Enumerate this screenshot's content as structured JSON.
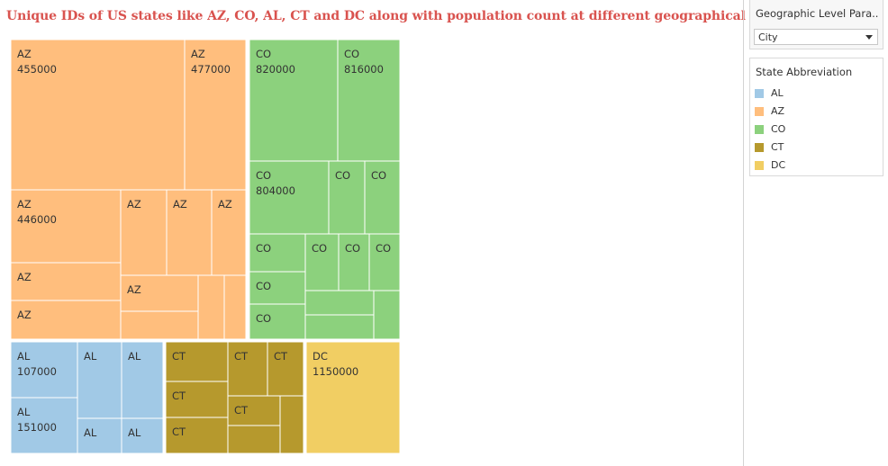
{
  "title": "Unique IDs of US states like AZ, CO, AL, CT and DC along with population count at different geographical level",
  "parameter": {
    "title": "Geographic Level Para...",
    "selected": "City"
  },
  "legend": {
    "title": "State Abbreviation",
    "items": [
      {
        "label": "AL",
        "color": "#a1c9e6"
      },
      {
        "label": "AZ",
        "color": "#ffbe7d"
      },
      {
        "label": "CO",
        "color": "#8cd17d"
      },
      {
        "label": "CT",
        "color": "#b6992d"
      },
      {
        "label": "DC",
        "color": "#f1ce63"
      }
    ]
  },
  "chart_data": {
    "type": "treemap",
    "colors": {
      "AL": "#a1c9e6",
      "AZ": "#ffbe7d",
      "CO": "#8cd17d",
      "CT": "#b6992d",
      "DC": "#f1ce63"
    },
    "labels": [
      {
        "state": "AZ",
        "value": "455000"
      },
      {
        "state": "AZ",
        "value": "477000"
      },
      {
        "state": "AZ",
        "value": "446000"
      },
      {
        "state": "AZ"
      },
      {
        "state": "AZ"
      },
      {
        "state": "AZ"
      },
      {
        "state": "AZ"
      },
      {
        "state": "AZ"
      },
      {
        "state": "AZ"
      },
      {
        "state": "CO",
        "value": "820000"
      },
      {
        "state": "CO",
        "value": "816000"
      },
      {
        "state": "CO",
        "value": "804000"
      },
      {
        "state": "CO"
      },
      {
        "state": "CO"
      },
      {
        "state": "CO"
      },
      {
        "state": "CO"
      },
      {
        "state": "CO"
      },
      {
        "state": "CO"
      },
      {
        "state": "CO"
      },
      {
        "state": "CO"
      },
      {
        "state": "AL",
        "value": "107000"
      },
      {
        "state": "AL",
        "value": "151000"
      },
      {
        "state": "AL"
      },
      {
        "state": "AL"
      },
      {
        "state": "AL"
      },
      {
        "state": "AL"
      },
      {
        "state": "CT"
      },
      {
        "state": "CT"
      },
      {
        "state": "CT"
      },
      {
        "state": "CT"
      },
      {
        "state": "CT"
      },
      {
        "state": "CT"
      },
      {
        "state": "DC",
        "value": "1150000"
      }
    ]
  }
}
